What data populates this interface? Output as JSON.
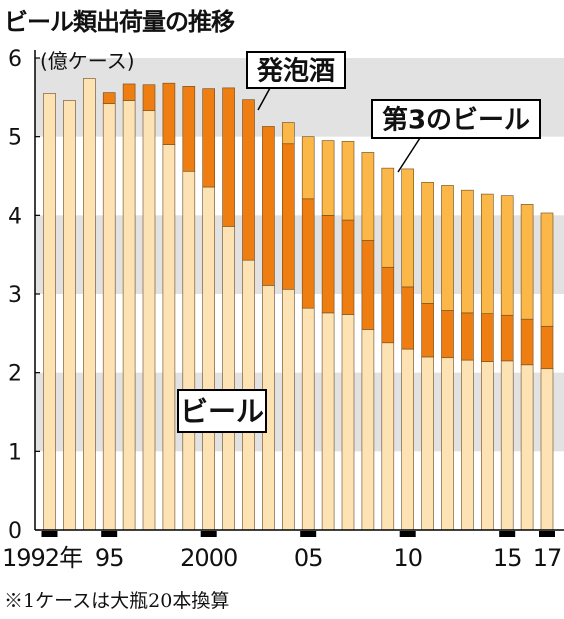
{
  "title": "ビール類出荷量の推移",
  "footnote": "※1ケースは大瓶20本換算",
  "colors": {
    "beer": "#fde2b3",
    "happoshu": "#ee7d12",
    "third_beer": "#fbb747",
    "band": "#e2e2e2",
    "axis": "#000000"
  },
  "chart_data": {
    "type": "bar",
    "stacked": true,
    "ylabel": "(億ケース)",
    "ylim": [
      0,
      6
    ],
    "yticks": [
      "0",
      "1",
      "2",
      "3",
      "4",
      "5",
      "6"
    ],
    "grid": "alternating horizontal bands",
    "x": [
      1992,
      1993,
      1994,
      1995,
      1996,
      1997,
      1998,
      1999,
      2000,
      2001,
      2002,
      2003,
      2004,
      2005,
      2006,
      2007,
      2008,
      2009,
      2010,
      2011,
      2012,
      2013,
      2014,
      2015,
      2016,
      2017
    ],
    "xtick_labels": [
      {
        "year": 1992,
        "label": "1992年"
      },
      {
        "year": 1995,
        "label": "95"
      },
      {
        "year": 2000,
        "label": "2000"
      },
      {
        "year": 2005,
        "label": "05"
      },
      {
        "year": 2010,
        "label": "10"
      },
      {
        "year": 2015,
        "label": "15"
      },
      {
        "year": 2017,
        "label": "17"
      }
    ],
    "series": [
      {
        "name": "ビール",
        "values": [
          5.55,
          5.46,
          5.74,
          5.42,
          5.46,
          5.33,
          4.9,
          4.56,
          4.36,
          3.86,
          3.43,
          3.11,
          3.06,
          2.82,
          2.76,
          2.74,
          2.55,
          2.38,
          2.3,
          2.2,
          2.19,
          2.16,
          2.14,
          2.15,
          2.1,
          2.05
        ]
      },
      {
        "name": "発泡酒",
        "values": [
          0,
          0,
          0,
          0.14,
          0.21,
          0.33,
          0.78,
          1.08,
          1.25,
          1.76,
          2.04,
          2.02,
          1.85,
          1.39,
          1.24,
          1.2,
          1.13,
          0.96,
          0.79,
          0.68,
          0.6,
          0.6,
          0.61,
          0.58,
          0.58,
          0.54
        ]
      },
      {
        "name": "第3のビール",
        "values": [
          0,
          0,
          0,
          0,
          0,
          0,
          0,
          0,
          0,
          0,
          0,
          0,
          0.27,
          0.79,
          0.95,
          1.0,
          1.12,
          1.26,
          1.5,
          1.54,
          1.59,
          1.56,
          1.52,
          1.52,
          1.46,
          1.44
        ]
      }
    ],
    "series_labels": [
      "ビール",
      "発泡酒",
      "第3のビール"
    ]
  }
}
